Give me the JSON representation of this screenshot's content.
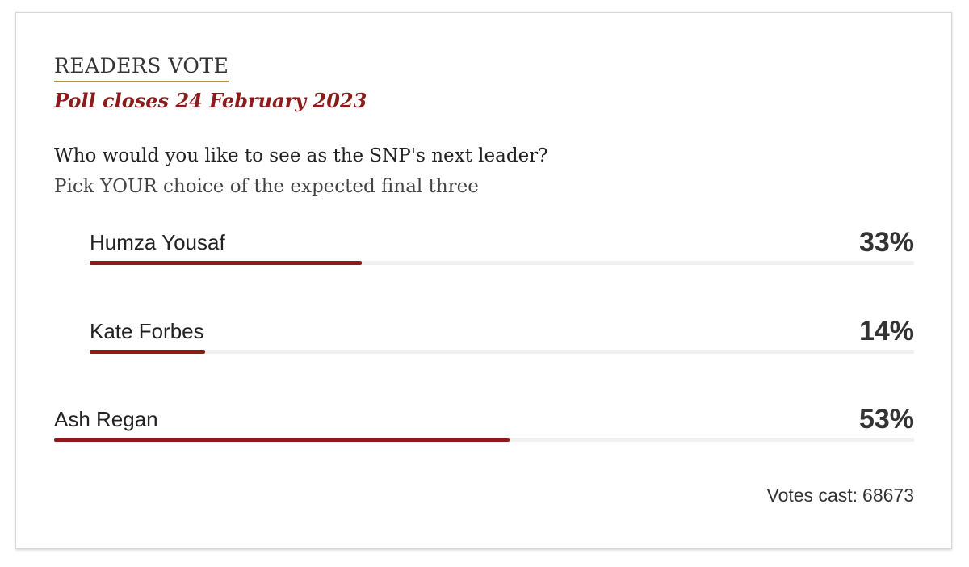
{
  "poll": {
    "heading": "READERS VOTE",
    "closes": "Poll closes 24 February 2023",
    "question": "Who would you like to see as the SNP's next leader?",
    "subquestion": "Pick YOUR choice of the expected final three",
    "options": [
      {
        "name": "Humza Yousaf",
        "percent_label": "33%",
        "percent": 33
      },
      {
        "name": "Kate Forbes",
        "percent_label": "14%",
        "percent": 14
      },
      {
        "name": "Ash Regan",
        "percent_label": "53%",
        "percent": 53
      }
    ],
    "votes_label": "Votes cast:",
    "votes_count": "68673"
  },
  "colors": {
    "accent": "#8c1c1c",
    "heading_underline": "#b8943a",
    "track": "#f0f0f0"
  }
}
